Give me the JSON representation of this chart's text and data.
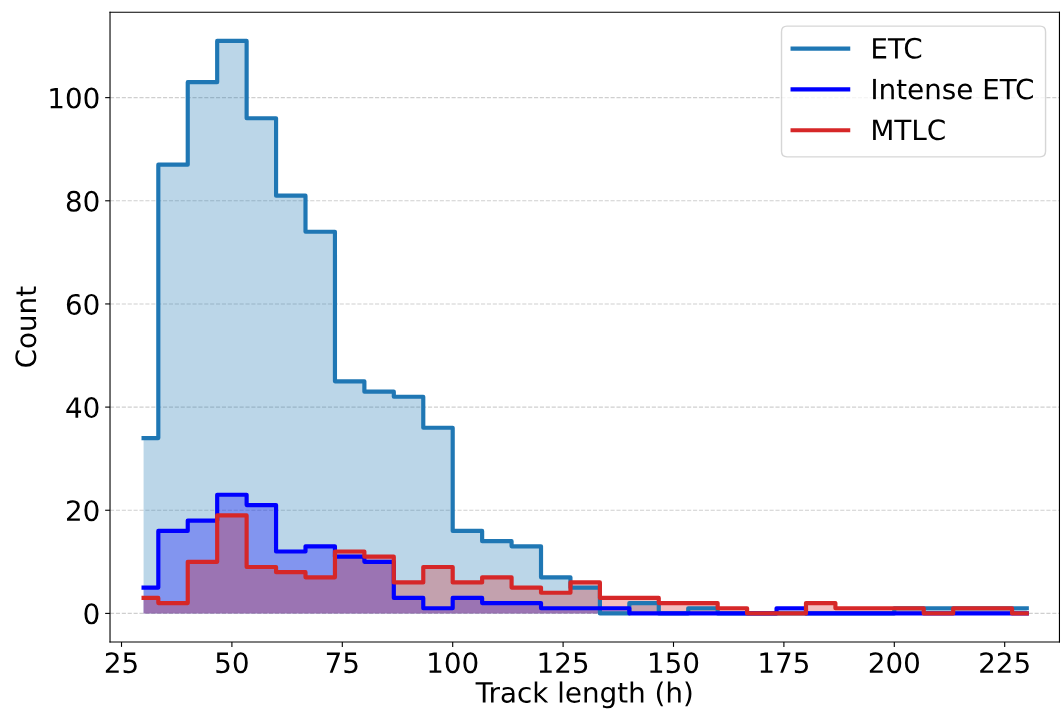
{
  "chart_data": {
    "type": "step",
    "xlabel": "Track length (h)",
    "ylabel": "Count",
    "x": [
      30,
      36.67,
      43.33,
      50,
      56.67,
      63.33,
      70,
      76.67,
      83.33,
      90,
      96.67,
      103.33,
      110,
      116.67,
      123.33,
      130,
      136.67,
      143.33,
      150,
      156.67,
      163.33,
      170,
      176.67,
      183.33,
      190,
      196.67,
      203.33,
      210,
      216.67,
      223.33,
      230
    ],
    "series": [
      {
        "name": "ETC",
        "color": "#1f77b4",
        "values": [
          34,
          87,
          103,
          111,
          96,
          81,
          74,
          45,
          43,
          42,
          36,
          16,
          14,
          13,
          7,
          5,
          0,
          2,
          0,
          1,
          0,
          0,
          0,
          0,
          0,
          0,
          1,
          1,
          1,
          1,
          1
        ]
      },
      {
        "name": "Intense ETC",
        "color": "#0000ff",
        "values": [
          5,
          16,
          18,
          23,
          21,
          12,
          13,
          11,
          10,
          3,
          1,
          3,
          2,
          2,
          1,
          1,
          1,
          0,
          0,
          0,
          0,
          0,
          1,
          0,
          0,
          0,
          0,
          0,
          0,
          0,
          0
        ]
      },
      {
        "name": "MTLC",
        "color": "#d62728",
        "values": [
          3,
          2,
          10,
          19,
          9,
          8,
          7,
          12,
          11,
          6,
          9,
          6,
          7,
          5,
          4,
          6,
          3,
          3,
          2,
          2,
          1,
          0,
          0,
          2,
          1,
          1,
          1,
          0,
          1,
          1,
          0
        ]
      }
    ],
    "xlim": [
      22.4,
      237.4
    ],
    "xticks": [
      25,
      50,
      75,
      100,
      125,
      150,
      175,
      200,
      225
    ],
    "ylim": [
      -5.55,
      116.55
    ],
    "yticks": [
      0,
      20,
      40,
      60,
      80,
      100
    ],
    "grid": "y",
    "legend": "top right"
  }
}
